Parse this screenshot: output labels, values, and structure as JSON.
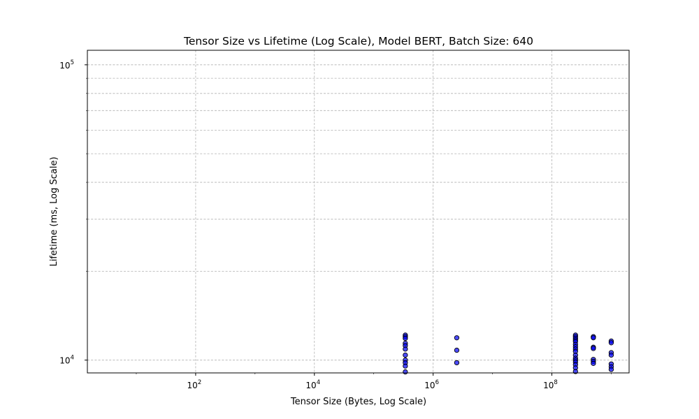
{
  "chart_data": {
    "type": "scatter",
    "title": "Tensor Size vs Lifetime (Log Scale), Model BERT, Batch Size: 640",
    "xlabel": "Tensor Size (Bytes, Log Scale)",
    "ylabel": "Lifetime (ms, Log Scale)",
    "xscale": "log",
    "yscale": "log",
    "xlim": [
      1.5,
      2000000000
    ],
    "ylim": [
      9050,
      112000
    ],
    "grid": true,
    "x_major_ticks": [
      {
        "value": 100,
        "base": "10",
        "exp": "2"
      },
      {
        "value": 10000,
        "base": "10",
        "exp": "4"
      },
      {
        "value": 1000000,
        "base": "10",
        "exp": "6"
      },
      {
        "value": 100000000,
        "base": "10",
        "exp": "8"
      }
    ],
    "y_major_ticks": [
      {
        "value": 10000,
        "base": "10",
        "exp": "4"
      },
      {
        "value": 100000,
        "base": "10",
        "exp": "5"
      }
    ],
    "marker_color": "#0000ff",
    "points": [
      {
        "x": 340000,
        "y": 12150
      },
      {
        "x": 340000,
        "y": 12000
      },
      {
        "x": 340000,
        "y": 11850
      },
      {
        "x": 340000,
        "y": 11400
      },
      {
        "x": 340000,
        "y": 11200
      },
      {
        "x": 340000,
        "y": 10900
      },
      {
        "x": 340000,
        "y": 10400
      },
      {
        "x": 340000,
        "y": 10000
      },
      {
        "x": 340000,
        "y": 9800
      },
      {
        "x": 340000,
        "y": 9550
      },
      {
        "x": 340000,
        "y": 9120
      },
      {
        "x": 2500000,
        "y": 11900
      },
      {
        "x": 2500000,
        "y": 10800
      },
      {
        "x": 2500000,
        "y": 9800
      },
      {
        "x": 250000000,
        "y": 12150
      },
      {
        "x": 250000000,
        "y": 12000
      },
      {
        "x": 250000000,
        "y": 11850
      },
      {
        "x": 250000000,
        "y": 11700
      },
      {
        "x": 250000000,
        "y": 11550
      },
      {
        "x": 250000000,
        "y": 11300
      },
      {
        "x": 250000000,
        "y": 11100
      },
      {
        "x": 250000000,
        "y": 10900
      },
      {
        "x": 250000000,
        "y": 10700
      },
      {
        "x": 250000000,
        "y": 10400
      },
      {
        "x": 250000000,
        "y": 10150
      },
      {
        "x": 250000000,
        "y": 10000
      },
      {
        "x": 250000000,
        "y": 9850
      },
      {
        "x": 250000000,
        "y": 9650
      },
      {
        "x": 250000000,
        "y": 9420
      },
      {
        "x": 250000000,
        "y": 9150
      },
      {
        "x": 500000000,
        "y": 12000
      },
      {
        "x": 500000000,
        "y": 11900
      },
      {
        "x": 500000000,
        "y": 11050
      },
      {
        "x": 500000000,
        "y": 10950
      },
      {
        "x": 500000000,
        "y": 10050
      },
      {
        "x": 500000000,
        "y": 9900
      },
      {
        "x": 500000000,
        "y": 9750
      },
      {
        "x": 1000000000,
        "y": 11600
      },
      {
        "x": 1000000000,
        "y": 11450
      },
      {
        "x": 1000000000,
        "y": 10600
      },
      {
        "x": 1000000000,
        "y": 10400
      },
      {
        "x": 1000000000,
        "y": 9700
      },
      {
        "x": 1000000000,
        "y": 9500
      },
      {
        "x": 1000000000,
        "y": 9300
      }
    ]
  }
}
